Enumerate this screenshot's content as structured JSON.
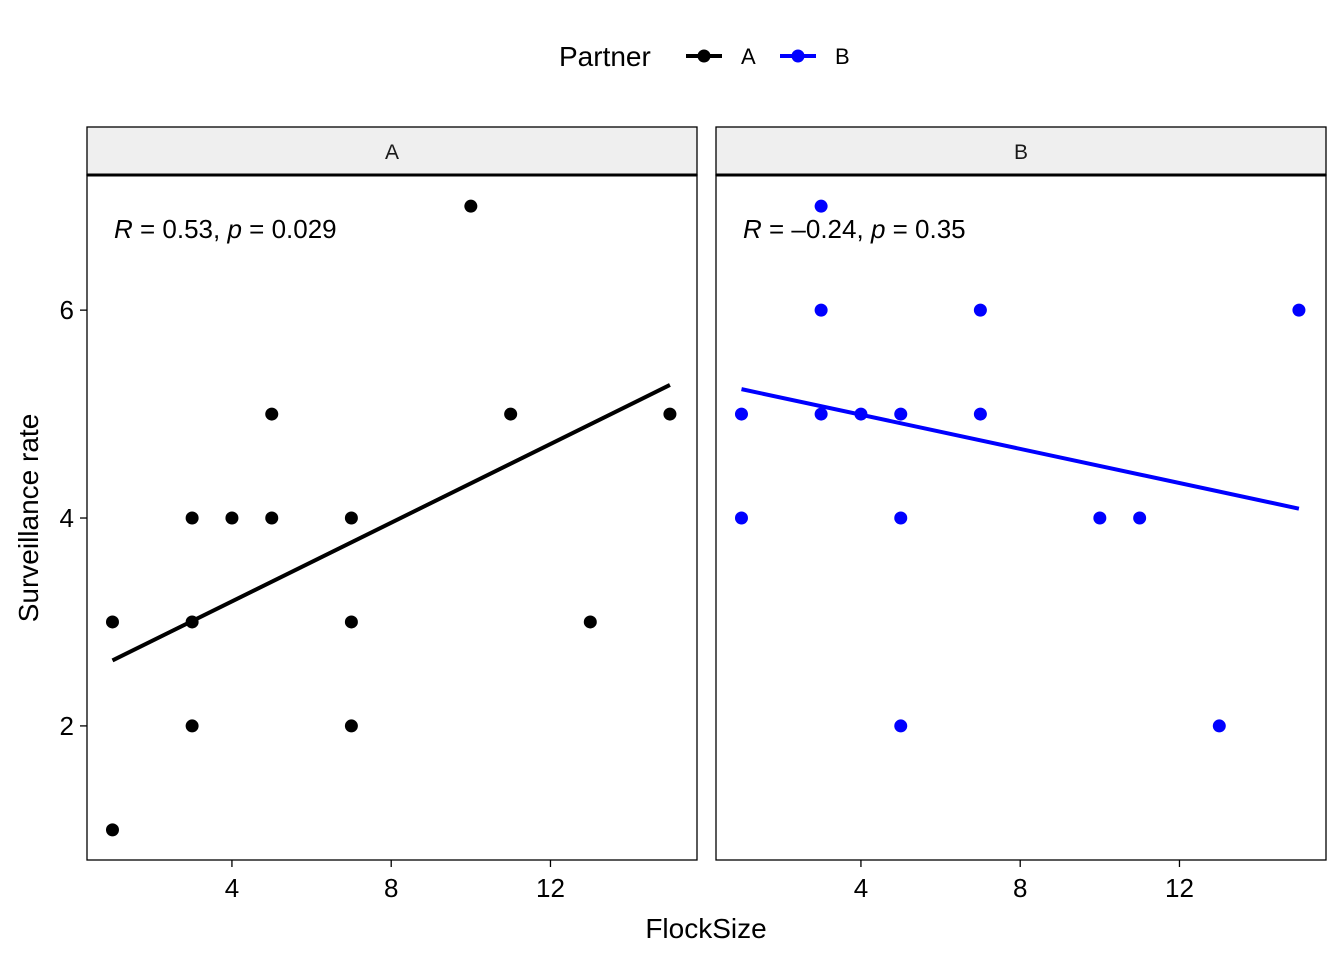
{
  "chart_data": {
    "type": "scatter",
    "xlabel": "FlockSize",
    "ylabel": "Surveillance rate",
    "xlim": [
      0.36,
      15.68
    ],
    "ylim": [
      0.71,
      7.3
    ],
    "xticks": [
      4,
      8,
      12
    ],
    "yticks": [
      2,
      4,
      6
    ],
    "grid": false,
    "legend": {
      "title": "Partner",
      "position": "top",
      "entries": [
        "A",
        "B"
      ]
    },
    "colors": {
      "A": "#000000",
      "B": "#0000ff"
    },
    "panels": [
      {
        "strip": "A",
        "series": "A",
        "annotation": {
          "r_label": "R",
          "r_text": " = 0.53, ",
          "p_label": "p",
          "p_text": " = 0.029"
        },
        "points": [
          [
            1,
            3
          ],
          [
            1,
            1
          ],
          [
            3,
            4
          ],
          [
            3,
            3
          ],
          [
            3,
            2
          ],
          [
            4,
            4
          ],
          [
            5,
            5
          ],
          [
            5,
            4
          ],
          [
            7,
            4
          ],
          [
            7,
            3
          ],
          [
            7,
            2
          ],
          [
            10,
            7
          ],
          [
            11,
            5
          ],
          [
            13,
            3
          ],
          [
            15,
            5
          ]
        ],
        "fit": [
          [
            1,
            2.63
          ],
          [
            15,
            5.28
          ]
        ]
      },
      {
        "strip": "B",
        "series": "B",
        "annotation": {
          "r_label": "R",
          "r_text": " = –0.24, ",
          "p_label": "p",
          "p_text": " = 0.35"
        },
        "points": [
          [
            1,
            5
          ],
          [
            1,
            4
          ],
          [
            3,
            7
          ],
          [
            3,
            6
          ],
          [
            3,
            5
          ],
          [
            4,
            5
          ],
          [
            5,
            5
          ],
          [
            5,
            4
          ],
          [
            5,
            2
          ],
          [
            7,
            6
          ],
          [
            7,
            5
          ],
          [
            10,
            4
          ],
          [
            11,
            4
          ],
          [
            13,
            2
          ],
          [
            15,
            6
          ]
        ],
        "fit": [
          [
            1,
            5.24
          ],
          [
            15,
            4.09
          ]
        ]
      }
    ]
  }
}
